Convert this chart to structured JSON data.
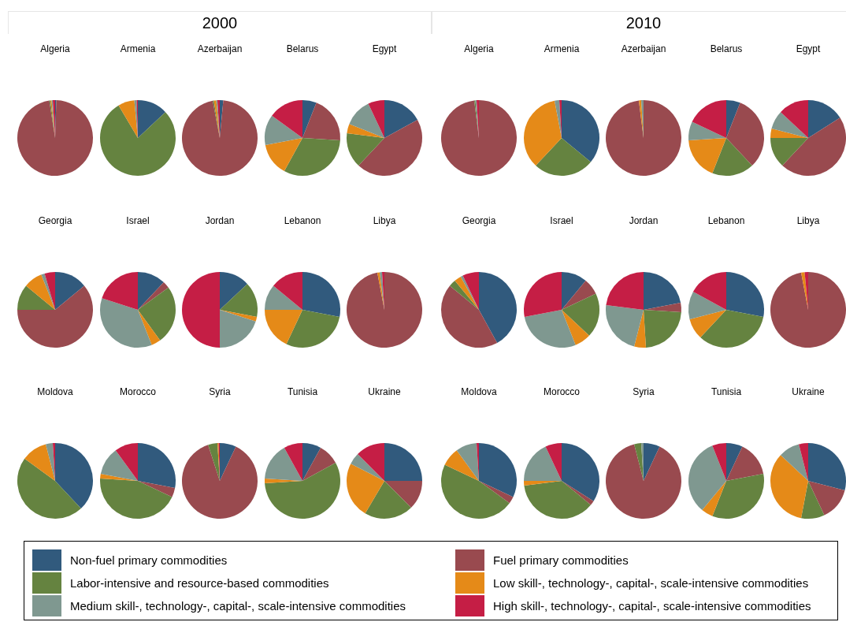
{
  "chart_data": [
    {
      "type": "pie",
      "title": "Algeria",
      "annotations": [
        "2000"
      ],
      "legend": "bottom",
      "categories": [
        "Non-fuel primary commodities",
        "Fuel primary commodities",
        "Labor-intensive and resource-based commodities",
        "Low skill-, technology-, capital-, scale-intensive commodities",
        "Medium skill-, technology-, capital-, scale-intensive commodities",
        "High skill-, technology-, capital-, scale-intensive commodities"
      ],
      "values": [
        0.5,
        97,
        0.5,
        0.5,
        0.5,
        1
      ],
      "colors": [
        "#315a7d",
        "#994a4f",
        "#658340",
        "#e58a18",
        "#7f9890",
        "#c51e45"
      ]
    },
    {
      "type": "pie",
      "title": "Armenia",
      "values": [
        13,
        0,
        78.5,
        7,
        1,
        0.5
      ],
      "colors": [
        "#315a7d",
        "#994a4f",
        "#658340",
        "#e58a18",
        "#7f9890",
        "#c51e45"
      ]
    },
    {
      "type": "pie",
      "title": "Azerbaijan",
      "values": [
        1.5,
        95.5,
        0.5,
        1,
        0.5,
        1
      ],
      "colors": [
        "#315a7d",
        "#994a4f",
        "#658340",
        "#e58a18",
        "#7f9890",
        "#c51e45"
      ]
    },
    {
      "type": "pie",
      "title": "Belarus",
      "values": [
        6,
        20,
        32,
        14,
        13,
        15
      ],
      "colors": [
        "#315a7d",
        "#994a4f",
        "#658340",
        "#e58a18",
        "#7f9890",
        "#c51e45"
      ]
    },
    {
      "type": "pie",
      "title": "Egypt",
      "values": [
        17,
        45,
        15,
        4,
        12,
        7
      ],
      "colors": [
        "#315a7d",
        "#994a4f",
        "#658340",
        "#e58a18",
        "#7f9890",
        "#c51e45"
      ]
    },
    {
      "type": "pie",
      "title": "Georgia",
      "values": [
        14,
        61,
        11,
        8,
        1.5,
        4.5
      ],
      "colors": [
        "#315a7d",
        "#994a4f",
        "#658340",
        "#e58a18",
        "#7f9890",
        "#c51e45"
      ]
    },
    {
      "type": "pie",
      "title": "Israel",
      "values": [
        12,
        3,
        25,
        4,
        36,
        20
      ],
      "colors": [
        "#315a7d",
        "#994a4f",
        "#658340",
        "#e58a18",
        "#7f9890",
        "#c51e45"
      ]
    },
    {
      "type": "pie",
      "title": "Jordan",
      "values": [
        13,
        0,
        15,
        2,
        20,
        50
      ],
      "colors": [
        "#315a7d",
        "#994a4f",
        "#658340",
        "#e58a18",
        "#7f9890",
        "#c51e45"
      ]
    },
    {
      "type": "pie",
      "title": "Lebanon",
      "values": [
        28,
        0,
        29,
        18,
        11,
        14
      ],
      "colors": [
        "#315a7d",
        "#994a4f",
        "#658340",
        "#e58a18",
        "#7f9890",
        "#c51e45"
      ]
    },
    {
      "type": "pie",
      "title": "Libya",
      "values": [
        0,
        97,
        0,
        1,
        1,
        1
      ],
      "colors": [
        "#315a7d",
        "#994a4f",
        "#658340",
        "#e58a18",
        "#7f9890",
        "#c51e45"
      ]
    },
    {
      "type": "pie",
      "title": "Moldova",
      "values": [
        38,
        0,
        47,
        11,
        3,
        1
      ],
      "colors": [
        "#315a7d",
        "#994a4f",
        "#658340",
        "#e58a18",
        "#7f9890",
        "#c51e45"
      ]
    },
    {
      "type": "pie",
      "title": "Morocco",
      "values": [
        28,
        4,
        44,
        2,
        12,
        10
      ],
      "colors": [
        "#315a7d",
        "#994a4f",
        "#658340",
        "#e58a18",
        "#7f9890",
        "#c51e45"
      ]
    },
    {
      "type": "pie",
      "title": "Syria",
      "values": [
        7,
        88,
        4,
        0.5,
        0,
        0.5
      ],
      "colors": [
        "#315a7d",
        "#994a4f",
        "#658340",
        "#e58a18",
        "#7f9890",
        "#c51e45"
      ]
    },
    {
      "type": "pie",
      "title": "Tunisia",
      "values": [
        8,
        9,
        57,
        2,
        16,
        8
      ],
      "colors": [
        "#315a7d",
        "#994a4f",
        "#658340",
        "#e58a18",
        "#7f9890",
        "#c51e45"
      ]
    },
    {
      "type": "pie",
      "title": "Ukraine",
      "values": [
        25,
        12.5,
        21,
        24,
        5,
        12.5
      ],
      "colors": [
        "#315a7d",
        "#994a4f",
        "#658340",
        "#e58a18",
        "#7f9890",
        "#c51e45"
      ]
    },
    {
      "type": "pie",
      "title": "Algeria",
      "annotations": [
        "2010"
      ],
      "values": [
        0,
        98,
        0.5,
        0,
        0.5,
        1
      ],
      "colors": [
        "#315a7d",
        "#994a4f",
        "#658340",
        "#e58a18",
        "#7f9890",
        "#c51e45"
      ]
    },
    {
      "type": "pie",
      "title": "Armenia",
      "values": [
        36,
        0,
        26,
        35,
        2,
        1
      ],
      "colors": [
        "#315a7d",
        "#994a4f",
        "#658340",
        "#e58a18",
        "#7f9890",
        "#c51e45"
      ]
    },
    {
      "type": "pie",
      "title": "Azerbaijan",
      "values": [
        0,
        98,
        0,
        1,
        1,
        0
      ],
      "colors": [
        "#315a7d",
        "#994a4f",
        "#658340",
        "#e58a18",
        "#7f9890",
        "#c51e45"
      ]
    },
    {
      "type": "pie",
      "title": "Belarus",
      "values": [
        6,
        32,
        18,
        18,
        8,
        18
      ],
      "colors": [
        "#315a7d",
        "#994a4f",
        "#658340",
        "#e58a18",
        "#7f9890",
        "#c51e45"
      ]
    },
    {
      "type": "pie",
      "title": "Egypt",
      "values": [
        16,
        46,
        13,
        4,
        8,
        13
      ],
      "colors": [
        "#315a7d",
        "#994a4f",
        "#658340",
        "#e58a18",
        "#7f9890",
        "#c51e45"
      ]
    },
    {
      "type": "pie",
      "title": "Georgia",
      "values": [
        42,
        44,
        3,
        3,
        1,
        7
      ],
      "colors": [
        "#315a7d",
        "#994a4f",
        "#658340",
        "#e58a18",
        "#7f9890",
        "#c51e45"
      ]
    },
    {
      "type": "pie",
      "title": "Israel",
      "values": [
        11,
        7,
        19,
        7,
        28,
        28
      ],
      "colors": [
        "#315a7d",
        "#994a4f",
        "#658340",
        "#e58a18",
        "#7f9890",
        "#c51e45"
      ]
    },
    {
      "type": "pie",
      "title": "Jordan",
      "values": [
        22,
        4,
        23,
        5,
        23,
        23
      ],
      "colors": [
        "#315a7d",
        "#994a4f",
        "#658340",
        "#e58a18",
        "#7f9890",
        "#c51e45"
      ]
    },
    {
      "type": "pie",
      "title": "Lebanon",
      "values": [
        28,
        0,
        34,
        9,
        12,
        17
      ],
      "colors": [
        "#315a7d",
        "#994a4f",
        "#658340",
        "#e58a18",
        "#7f9890",
        "#c51e45"
      ]
    },
    {
      "type": "pie",
      "title": "Libya",
      "values": [
        0,
        97,
        0,
        1.5,
        0,
        1.5
      ],
      "colors": [
        "#315a7d",
        "#994a4f",
        "#658340",
        "#e58a18",
        "#7f9890",
        "#c51e45"
      ]
    },
    {
      "type": "pie",
      "title": "Moldova",
      "values": [
        32,
        3,
        47,
        8,
        9,
        1
      ],
      "colors": [
        "#315a7d",
        "#994a4f",
        "#658340",
        "#e58a18",
        "#7f9890",
        "#c51e45"
      ]
    },
    {
      "type": "pie",
      "title": "Morocco",
      "values": [
        34,
        2,
        37,
        2,
        18,
        7
      ],
      "colors": [
        "#315a7d",
        "#994a4f",
        "#658340",
        "#e58a18",
        "#7f9890",
        "#c51e45"
      ]
    },
    {
      "type": "pie",
      "title": "Syria",
      "values": [
        7,
        89,
        3,
        0,
        1,
        0
      ],
      "colors": [
        "#315a7d",
        "#994a4f",
        "#658340",
        "#e58a18",
        "#7f9890",
        "#c51e45"
      ]
    },
    {
      "type": "pie",
      "title": "Tunisia",
      "values": [
        7,
        15,
        34,
        5,
        33,
        6
      ],
      "colors": [
        "#315a7d",
        "#994a4f",
        "#658340",
        "#e58a18",
        "#7f9890",
        "#c51e45"
      ]
    },
    {
      "type": "pie",
      "title": "Ukraine",
      "values": [
        29,
        14,
        10,
        34,
        9,
        4
      ],
      "colors": [
        "#315a7d",
        "#994a4f",
        "#658340",
        "#e58a18",
        "#7f9890",
        "#c51e45"
      ]
    }
  ]
}
